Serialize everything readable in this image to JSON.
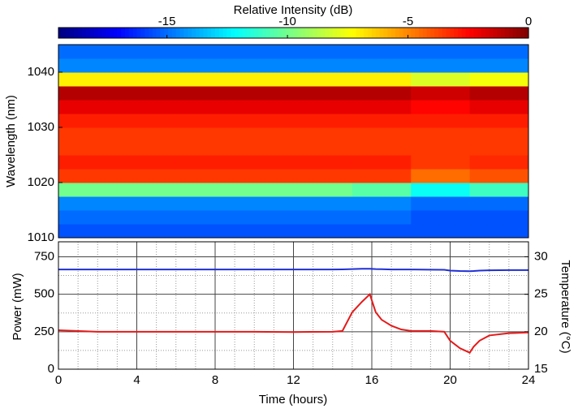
{
  "chart_data": [
    {
      "type": "heatmap",
      "ylabel": "Wavelength (nm)",
      "colormap": "jet",
      "colorbar": {
        "label": "Relative Intensity (dB)",
        "lim": [
          -19.5,
          0
        ],
        "ticks": [
          -15,
          -10,
          -5,
          0
        ]
      },
      "xlim": [
        0,
        24
      ],
      "ylim": [
        1010,
        1045
      ],
      "yticks": [
        1010,
        1020,
        1030,
        1040
      ],
      "x_bins": [
        0,
        3,
        6,
        9,
        12,
        15,
        18,
        21,
        24
      ],
      "y_bins": [
        1010,
        1012.5,
        1015,
        1017.5,
        1020,
        1022.5,
        1025,
        1027.5,
        1030,
        1032.5,
        1035,
        1037.5,
        1040,
        1042.5,
        1045
      ],
      "values": [
        [
          -15.5,
          -15.5,
          -15.5,
          -15.5,
          -15.5,
          -15.5,
          -15.5,
          -15.5
        ],
        [
          -15,
          -15,
          -15,
          -15,
          -15,
          -15,
          -15.5,
          -15.5
        ],
        [
          -14.5,
          -14.5,
          -14.5,
          -14.5,
          -14.5,
          -14.5,
          -15,
          -15
        ],
        [
          -10,
          -10,
          -10,
          -10,
          -10,
          -10.5,
          -12,
          -11
        ],
        [
          -3.5,
          -3.5,
          -3.5,
          -3.5,
          -3.5,
          -3.5,
          -4.5,
          -4
        ],
        [
          -3,
          -3,
          -3,
          -3,
          -3,
          -3,
          -3.5,
          -3.2
        ],
        [
          -3.5,
          -3.5,
          -3.5,
          -3.5,
          -3.5,
          -3.5,
          -3.5,
          -3.5
        ],
        [
          -3.5,
          -3.5,
          -3.5,
          -3.5,
          -3.5,
          -3.5,
          -3.5,
          -3.5
        ],
        [
          -3,
          -3,
          -3,
          -3,
          -3,
          -3,
          -3,
          -3
        ],
        [
          -2,
          -2,
          -2,
          -2,
          -2,
          -2,
          -2.5,
          -2
        ],
        [
          -1,
          -1,
          -1,
          -1,
          -1,
          -1,
          -1.5,
          -1
        ],
        [
          -7,
          -7,
          -7,
          -7,
          -7,
          -7,
          -8,
          -7.5
        ],
        [
          -14.5,
          -14.5,
          -14.5,
          -14.5,
          -14.5,
          -14.5,
          -14.5,
          -14.5
        ],
        [
          -15,
          -15,
          -15,
          -15,
          -15,
          -15,
          -15,
          -15
        ]
      ]
    },
    {
      "type": "line",
      "xlabel": "Time (hours)",
      "ylabel": "Power (mW)",
      "y2label": "Temperature (°C)",
      "xlim": [
        0,
        24
      ],
      "xticks": [
        0,
        4,
        8,
        12,
        16,
        20,
        24
      ],
      "xminorticks": [
        1,
        2,
        3,
        5,
        6,
        7,
        9,
        10,
        11,
        13,
        14,
        15,
        17,
        18,
        19,
        21,
        22,
        23
      ],
      "ylim": [
        0,
        850
      ],
      "yticks": [
        0,
        250,
        500,
        750
      ],
      "yminorticks": [
        125,
        375,
        625
      ],
      "y2lim": [
        15,
        32
      ],
      "y2ticks": [
        15,
        20,
        25,
        30
      ],
      "grid": true,
      "x": [
        0,
        2,
        4,
        6,
        8,
        10,
        12,
        14,
        14.5,
        15,
        15.5,
        15.9,
        16.2,
        16.5,
        17,
        17.5,
        18,
        19,
        19.7,
        20,
        20.5,
        21,
        21.2,
        21.5,
        22,
        23,
        24
      ],
      "series": [
        {
          "color": "#1f2fd6",
          "axis": "y",
          "values": [
            665,
            665,
            665,
            665,
            665,
            665,
            665,
            665,
            666,
            668,
            670,
            670,
            668,
            667,
            665,
            665,
            665,
            664,
            663,
            658,
            655,
            654,
            655,
            658,
            660,
            661,
            661
          ]
        },
        {
          "color": "#e41a1a",
          "axis": "y2",
          "values": [
            20.2,
            20,
            20,
            20,
            20,
            20,
            19.96,
            20,
            20.1,
            22.6,
            24,
            25,
            22.6,
            21.6,
            20.8,
            20.3,
            20.1,
            20.1,
            20,
            18.8,
            17.8,
            17.2,
            18,
            18.8,
            19.5,
            19.8,
            19.9
          ]
        }
      ]
    }
  ]
}
